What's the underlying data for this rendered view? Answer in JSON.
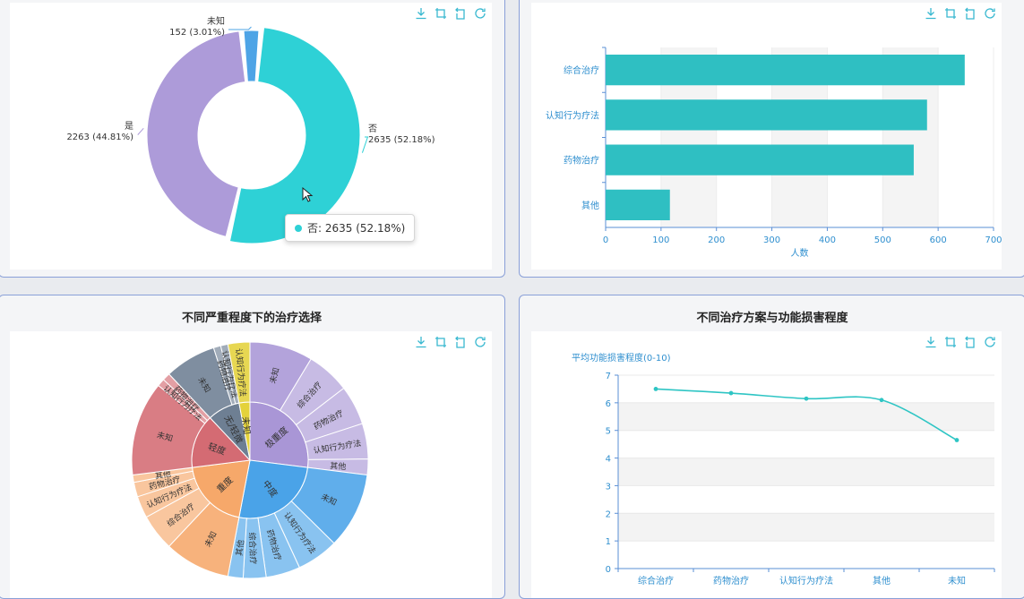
{
  "colors": {
    "teal": "#2ed1d6",
    "purple": "#ad9bd9",
    "blue": "#4ea4e6",
    "bar": "#2fbfc2",
    "line": "#2ec5c4",
    "axis": "#5a8fd6",
    "tool": "#38b8d0"
  },
  "toolbox": {
    "labels": [
      "download-icon",
      "crop-icon",
      "restore-icon",
      "refresh-icon"
    ]
  },
  "panel1": {
    "tooltip": {
      "label": "否: 2635 (52.18%)"
    },
    "chart_data": {
      "type": "pie",
      "variant": "donut",
      "slices": [
        {
          "name": "否",
          "value": 2635,
          "percent": "52.18%",
          "label_line1": "否",
          "label_line2": "2635 (52.18%)",
          "color": "#2ed1d6"
        },
        {
          "name": "是",
          "value": 2263,
          "percent": "44.81%",
          "label_line1": "是",
          "label_line2": "2263 (44.81%)",
          "color": "#ad9bd9"
        },
        {
          "name": "未知",
          "value": 152,
          "percent": "3.01%",
          "label_line1": "未知",
          "label_line2": "152 (3.01%)",
          "color": "#4ea4e6"
        }
      ]
    }
  },
  "panel2": {
    "chart_data": {
      "type": "bar",
      "orientation": "horizontal",
      "categories": [
        "综合治疗",
        "认知行为疗法",
        "药物治疗",
        "其他"
      ],
      "values": [
        648,
        580,
        556,
        116
      ],
      "xlim": [
        0,
        700
      ],
      "xticks": [
        "0",
        "100",
        "200",
        "300",
        "400",
        "500",
        "600",
        "700"
      ],
      "xlabel": "人数"
    }
  },
  "panel3": {
    "title": "不同严重程度下的治疗选择",
    "chart_data": {
      "type": "sunburst",
      "inner": [
        {
          "name": "极重度",
          "color": "#a996d6"
        },
        {
          "name": "中度",
          "color": "#4aa3e8"
        },
        {
          "name": "重度",
          "color": "#f6a86a"
        },
        {
          "name": "轻度",
          "color": "#d46b73"
        },
        {
          "name": "无/轻微",
          "color": "#6e7f93"
        },
        {
          "name": "未知",
          "color": "#e4d23a"
        }
      ],
      "outer": [
        {
          "parent": "极重度",
          "labels": [
            "未知",
            "综合治疗",
            "药物治疗",
            "认知行为疗法",
            "其他"
          ]
        },
        {
          "parent": "中度",
          "labels": [
            "未知",
            "认知行为疗法",
            "药物治疗",
            "综合治疗",
            "其他"
          ]
        },
        {
          "parent": "重度",
          "labels": [
            "未知",
            "综合治疗",
            "认知行为疗法",
            "药物治疗",
            "其他"
          ]
        },
        {
          "parent": "轻度",
          "labels": [
            "未知",
            "认知行为疗法",
            "药物治疗"
          ]
        },
        {
          "parent": "无/轻微",
          "labels": [
            "未知",
            "药物治疗",
            "认知行为疗法"
          ]
        },
        {
          "parent": "未知",
          "labels": [
            "认知行为疗法"
          ]
        }
      ]
    }
  },
  "panel4": {
    "title": "不同治疗方案与功能损害程度",
    "chart_data": {
      "type": "line",
      "smooth": true,
      "categories": [
        "综合治疗",
        "药物治疗",
        "认知行为疗法",
        "其他",
        "未知"
      ],
      "values": [
        6.5,
        6.35,
        6.15,
        6.1,
        4.65
      ],
      "ylabel": "平均功能损害程度(0-10)",
      "ylim": [
        0,
        7
      ],
      "yticks": [
        "0",
        "1",
        "2",
        "3",
        "4",
        "5",
        "6",
        "7"
      ]
    }
  }
}
